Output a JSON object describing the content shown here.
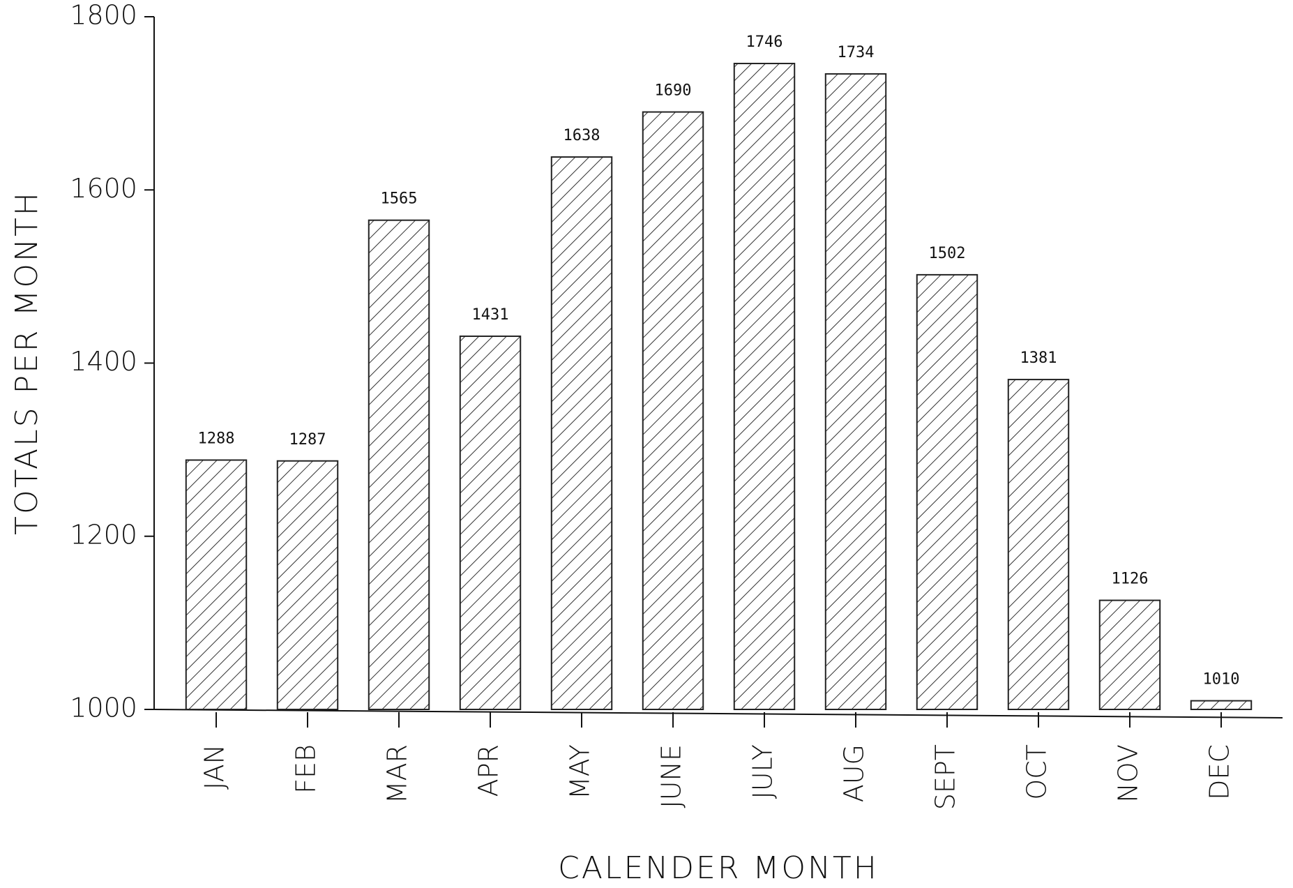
{
  "chart_data": {
    "type": "bar",
    "x_label": "CALENDER MONTH",
    "y_label": "TOTALS PER MONTH",
    "categories": [
      "JAN",
      "FEB",
      "MAR",
      "APR",
      "MAY",
      "JUNE",
      "JULY",
      "AUG",
      "SEPT",
      "OCT",
      "NOV",
      "DEC"
    ],
    "values": [
      1288,
      1287,
      1565,
      1431,
      1638,
      1690,
      1746,
      1734,
      1502,
      1381,
      1126,
      1010
    ],
    "color": "#222222",
    "ylim": [
      1000,
      1800
    ],
    "yticks": [
      1000,
      1200,
      1400,
      1600,
      1800
    ],
    "grid": false
  }
}
